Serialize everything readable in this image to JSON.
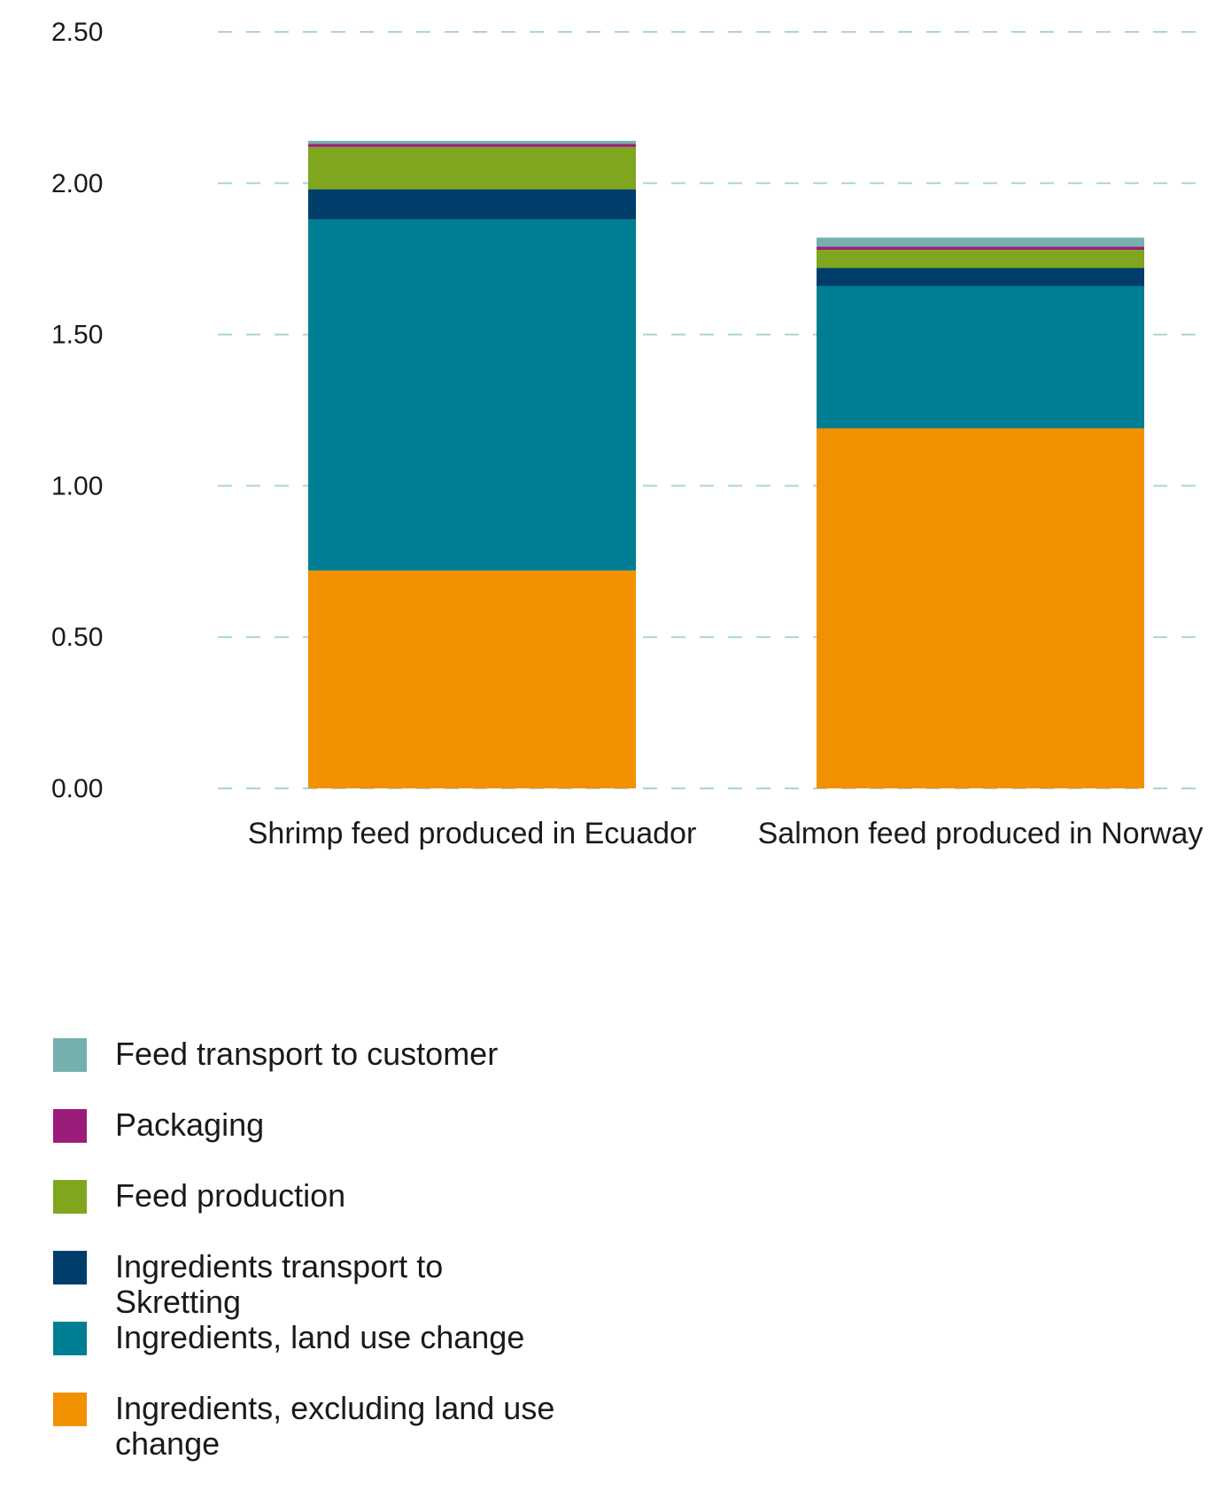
{
  "chart_data": {
    "type": "bar",
    "stacked": true,
    "title": "",
    "xlabel": "",
    "ylabel": "",
    "ylim": [
      0,
      2.5
    ],
    "yticks": [
      "0.00",
      "0.50",
      "1.00",
      "1.50",
      "2.00",
      "2.50"
    ],
    "ytick_values": [
      0,
      0.5,
      1.0,
      1.5,
      2.0,
      2.5
    ],
    "grid": true,
    "legend_position": "bottom-left",
    "categories": [
      "Shrimp feed produced in Ecuador",
      "Salmon feed produced in Norway"
    ],
    "series": [
      {
        "name": "Ingredients, excluding land use change",
        "color": "#F29100",
        "values": [
          0.72,
          1.19
        ]
      },
      {
        "name": "Ingredients, land use change",
        "color": "#007E93",
        "values": [
          1.16,
          0.47
        ]
      },
      {
        "name": "Ingredients transport to Skretting",
        "color": "#003D6B",
        "values": [
          0.1,
          0.06
        ]
      },
      {
        "name": "Feed production",
        "color": "#7FA61E",
        "values": [
          0.14,
          0.06
        ]
      },
      {
        "name": "Packaging",
        "color": "#9C1C7A",
        "values": [
          0.01,
          0.01
        ]
      },
      {
        "name": "Feed transport to customer",
        "color": "#76B0AE",
        "values": [
          0.01,
          0.03
        ]
      }
    ]
  },
  "legend": {
    "items": [
      {
        "label": "Feed transport to customer",
        "color": "#76B0AE"
      },
      {
        "label": "Packaging",
        "color": "#9C1C7A"
      },
      {
        "label": "Feed production",
        "color": "#7FA61E"
      },
      {
        "label": "Ingredients transport to Skretting",
        "color": "#003D6B"
      },
      {
        "label": "Ingredients, land use change",
        "color": "#007E93"
      },
      {
        "label": "Ingredients, excluding land use change",
        "color": "#F29100"
      }
    ]
  },
  "grid_color": "#A9D6D1"
}
